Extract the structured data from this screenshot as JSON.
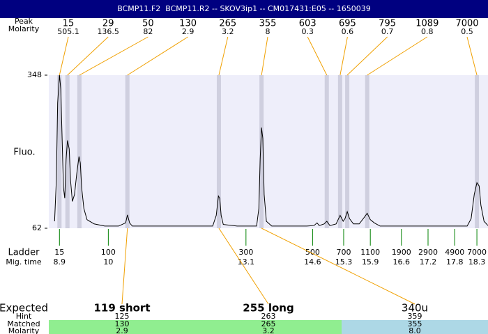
{
  "chart_data": {
    "type": "line",
    "title": "BCMP11.F2  BCMP11.R2 -- SKOV3ip1 -- CM017431:E05 -- 1650039",
    "ylabel": "Fluo.",
    "ylim": [
      62,
      348
    ],
    "yticks": [
      62,
      348
    ],
    "xlim": [
      8.66,
      18.55
    ],
    "xlabel": "Mig. time",
    "xticks": [
      8.9,
      10,
      13.1,
      14.6,
      15.3,
      15.9,
      16.6,
      17.2,
      17.8,
      18.3
    ],
    "ladder_label": "Ladder",
    "ladder_sizes": [
      15,
      100,
      300,
      500,
      700,
      1100,
      1900,
      2900,
      4900,
      7000
    ],
    "ladder_color": "#008000",
    "color": "#000000",
    "background": "#eeeefa",
    "peak_band_color": "#cfcfdf",
    "leader_color": "#f0a000",
    "peaks_label": "Peak",
    "molarity_label": "Molarity",
    "peaks": [
      {
        "size": 15,
        "molarity": 505.1,
        "time": 8.9
      },
      {
        "size": 29,
        "molarity": 136.5,
        "time": 9.08
      },
      {
        "size": 50,
        "molarity": 82,
        "time": 9.35
      },
      {
        "size": 130,
        "molarity": 2.9,
        "time": 10.43
      },
      {
        "size": 265,
        "molarity": 3.2,
        "time": 12.49
      },
      {
        "size": 355,
        "molarity": 8,
        "time": 13.45
      },
      {
        "size": 603,
        "molarity": 0.3,
        "time": 14.92
      },
      {
        "size": 695,
        "molarity": 0.6,
        "time": 15.22
      },
      {
        "size": 795,
        "molarity": 0.7,
        "time": 15.38
      },
      {
        "size": 1089,
        "molarity": 0.8,
        "time": 15.83
      },
      {
        "size": 7000,
        "molarity": 0.5,
        "time": 18.3
      }
    ],
    "x": [
      8.79,
      8.83,
      8.86,
      8.9,
      8.93,
      8.96,
      8.99,
      9.02,
      9.05,
      9.08,
      9.12,
      9.15,
      9.19,
      9.24,
      9.29,
      9.34,
      9.37,
      9.4,
      9.45,
      9.52,
      9.68,
      9.92,
      10.23,
      10.39,
      10.43,
      10.48,
      10.54,
      11.49,
      12.35,
      12.43,
      12.48,
      12.51,
      12.54,
      12.59,
      12.9,
      13.34,
      13.39,
      13.42,
      13.45,
      13.48,
      13.51,
      13.56,
      13.68,
      14.47,
      14.63,
      14.7,
      14.75,
      14.86,
      14.92,
      14.99,
      15.13,
      15.22,
      15.29,
      15.33,
      15.38,
      15.43,
      15.52,
      15.65,
      15.77,
      15.83,
      15.9,
      15.99,
      16.12,
      16.98,
      17.77,
      18.08,
      18.17,
      18.24,
      18.3,
      18.35,
      18.39,
      18.46,
      18.55
    ],
    "values": [
      75,
      151,
      296,
      348,
      322,
      230,
      138,
      118,
      191,
      226,
      210,
      151,
      112,
      125,
      164,
      196,
      184,
      138,
      99,
      78,
      70,
      66,
      66,
      72,
      87,
      72,
      66,
      66,
      66,
      86,
      122,
      118,
      86,
      69,
      66,
      66,
      99,
      191,
      250,
      230,
      125,
      75,
      66,
      66,
      67,
      72,
      67,
      70,
      75,
      67,
      70,
      86,
      75,
      80,
      93,
      80,
      70,
      70,
      83,
      90,
      78,
      72,
      66,
      66,
      66,
      66,
      80,
      125,
      147,
      141,
      105,
      75,
      67
    ]
  },
  "assay": {
    "labels": {
      "expected": "Expected",
      "hint": "Hint",
      "matched": "Matched",
      "molarity": "Molarity"
    },
    "columns": [
      {
        "expected": "119 short",
        "hint": 125,
        "matched": 130,
        "molarity": "2.9",
        "color": "#90ee90"
      },
      {
        "expected": "255 long",
        "hint": 263,
        "matched": 265,
        "molarity": "3.2",
        "color": "#90ee90"
      },
      {
        "expected": "340u",
        "hint": 359,
        "matched": 355,
        "molarity": "8.0",
        "color": "#add8e6"
      }
    ]
  }
}
